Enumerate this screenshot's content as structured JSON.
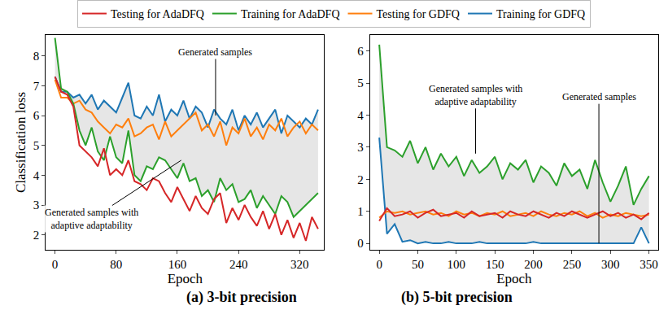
{
  "chart_data": [
    {
      "type": "line",
      "title": "(a) 3-bit precision",
      "x_label": "Epoch",
      "y_label": "Classification loss",
      "legend": "top",
      "grid": false,
      "xlim": [
        -12,
        352
      ],
      "ylim": [
        1.5,
        8.7
      ],
      "xticks": [
        0,
        80,
        160,
        240,
        320
      ],
      "yticks": [
        2,
        3,
        4,
        5,
        6,
        7,
        8
      ],
      "x": [
        0,
        8,
        16,
        24,
        32,
        40,
        48,
        56,
        64,
        72,
        80,
        88,
        96,
        104,
        112,
        120,
        128,
        136,
        144,
        152,
        160,
        168,
        176,
        184,
        192,
        200,
        208,
        216,
        224,
        232,
        240,
        248,
        256,
        264,
        272,
        280,
        288,
        296,
        304,
        312,
        320,
        328,
        336,
        344
      ],
      "series": [
        {
          "name": "Training for GDFQ",
          "color": "#1f77b4",
          "values": [
            7.3,
            6.8,
            6.8,
            6.6,
            6.7,
            6.4,
            6.7,
            6.2,
            6.5,
            6.3,
            6.1,
            6.6,
            7.1,
            6.0,
            5.9,
            6.3,
            6.0,
            6.7,
            5.8,
            6.2,
            6.0,
            6.5,
            5.9,
            6.3,
            6.1,
            5.6,
            6.2,
            5.9,
            5.7,
            6.2,
            5.5,
            6.0,
            5.7,
            6.1,
            5.6,
            5.9,
            6.2,
            5.4,
            6.0,
            5.8,
            5.6,
            5.9,
            5.7,
            6.2
          ]
        },
        {
          "name": "Testing for GDFQ",
          "color": "#ff7f0e",
          "values": [
            7.2,
            6.6,
            6.6,
            6.4,
            6.5,
            6.2,
            6.1,
            5.8,
            5.6,
            5.4,
            5.7,
            5.6,
            5.9,
            5.3,
            5.4,
            5.6,
            5.7,
            5.2,
            5.8,
            5.3,
            5.5,
            5.7,
            5.9,
            6.1,
            5.5,
            5.7,
            5.3,
            5.8,
            5.0,
            5.6,
            5.4,
            5.9,
            5.3,
            5.6,
            5.2,
            5.7,
            5.5,
            5.9,
            5.3,
            5.6,
            5.8,
            5.4,
            5.7,
            5.5
          ]
        },
        {
          "name": "Training for AdaDFQ",
          "color": "#2ca02c",
          "values": [
            8.6,
            6.9,
            6.8,
            6.4,
            5.5,
            5.0,
            5.6,
            4.8,
            4.5,
            5.3,
            4.6,
            4.4,
            5.5,
            4.0,
            3.8,
            4.3,
            4.2,
            4.6,
            4.5,
            4.2,
            3.9,
            4.4,
            3.8,
            3.9,
            3.3,
            3.5,
            3.1,
            3.9,
            3.5,
            3.7,
            3.1,
            3.2,
            3.5,
            2.9,
            3.3,
            3.0,
            2.7,
            3.3,
            3.1,
            2.6,
            2.8,
            3.0,
            3.2,
            3.4
          ]
        },
        {
          "name": "Testing for AdaDFQ",
          "color": "#d62728",
          "values": [
            7.3,
            6.8,
            6.7,
            6.3,
            5.0,
            4.8,
            4.6,
            4.3,
            4.9,
            4.0,
            4.2,
            4.0,
            4.5,
            3.8,
            3.7,
            3.5,
            3.9,
            3.8,
            3.4,
            3.1,
            3.6,
            3.2,
            2.8,
            3.3,
            2.9,
            2.7,
            3.2,
            3.4,
            2.4,
            2.9,
            2.5,
            3.0,
            2.6,
            2.3,
            2.8,
            2.2,
            2.7,
            2.0,
            2.5,
            1.9,
            2.4,
            1.8,
            2.6,
            2.2
          ]
        }
      ],
      "annotations": [
        {
          "text": [
            "Generated samples"
          ],
          "x": 210,
          "y": 6.0
        },
        {
          "text": [
            "Generated samples with",
            "adaptive adaptability"
          ],
          "x": 165,
          "y": 4.5
        }
      ]
    },
    {
      "type": "line",
      "title": "(b) 5-bit precision",
      "x_label": "Epoch",
      "grid": false,
      "xlim": [
        -12,
        362
      ],
      "ylim": [
        -0.2,
        6.5
      ],
      "xticks": [
        0,
        50,
        100,
        150,
        200,
        250,
        300,
        350
      ],
      "yticks": [
        0,
        1,
        2,
        3,
        4,
        5,
        6
      ],
      "x": [
        0,
        10,
        20,
        30,
        40,
        50,
        60,
        70,
        80,
        90,
        100,
        110,
        120,
        130,
        140,
        150,
        160,
        170,
        180,
        190,
        200,
        210,
        220,
        230,
        240,
        250,
        260,
        270,
        280,
        290,
        300,
        310,
        320,
        330,
        340,
        350
      ],
      "series": [
        {
          "name": "Training for GDFQ",
          "color": "#1f77b4",
          "values": [
            3.3,
            0.3,
            0.6,
            0.05,
            0.1,
            0.0,
            0.05,
            0.0,
            0.0,
            0.05,
            0.0,
            0.0,
            0.0,
            0.05,
            0.0,
            0.0,
            0.0,
            0.0,
            0.0,
            0.0,
            0.05,
            0.0,
            0.0,
            0.0,
            0.0,
            0.0,
            0.0,
            0.0,
            0.0,
            0.0,
            0.0,
            0.0,
            0.0,
            0.0,
            0.5,
            0.0
          ]
        },
        {
          "name": "Testing for GDFQ",
          "color": "#ff7f0e",
          "values": [
            0.8,
            1.0,
            0.95,
            1.0,
            0.9,
            0.95,
            1.0,
            0.9,
            0.95,
            0.85,
            1.0,
            0.9,
            0.95,
            0.85,
            0.95,
            0.9,
            1.0,
            0.85,
            0.9,
            0.95,
            0.85,
            1.0,
            0.9,
            0.85,
            0.95,
            0.9,
            1.0,
            0.85,
            0.95,
            0.8,
            0.9,
            0.85,
            0.95,
            0.9,
            0.85,
            0.9
          ]
        },
        {
          "name": "Training for AdaDFQ",
          "color": "#2ca02c",
          "values": [
            6.2,
            3.0,
            2.9,
            2.7,
            3.2,
            2.5,
            3.0,
            2.3,
            2.8,
            2.4,
            2.7,
            2.1,
            2.6,
            2.2,
            2.4,
            2.7,
            2.0,
            2.5,
            2.3,
            2.6,
            1.9,
            2.4,
            2.2,
            1.8,
            2.5,
            2.1,
            2.3,
            1.7,
            2.6,
            1.9,
            1.3,
            1.8,
            2.4,
            1.2,
            1.7,
            2.1
          ]
        },
        {
          "name": "Testing for AdaDFQ",
          "color": "#d62728",
          "values": [
            0.7,
            1.1,
            0.85,
            0.9,
            1.0,
            0.8,
            0.95,
            1.05,
            0.85,
            0.9,
            0.95,
            0.8,
            1.0,
            0.85,
            0.9,
            0.95,
            0.8,
            1.0,
            0.9,
            0.85,
            1.0,
            0.9,
            0.8,
            0.95,
            0.85,
            1.0,
            0.9,
            0.8,
            0.9,
            1.0,
            0.85,
            0.95,
            0.8,
            0.9,
            0.75,
            0.95
          ]
        }
      ],
      "annotations": [
        {
          "text": [
            "Generated samples with",
            "adaptive adaptability"
          ],
          "x": 125,
          "y": 2.8
        },
        {
          "text": [
            "Generated samples"
          ],
          "x": 285,
          "y": 0.0
        }
      ]
    }
  ]
}
